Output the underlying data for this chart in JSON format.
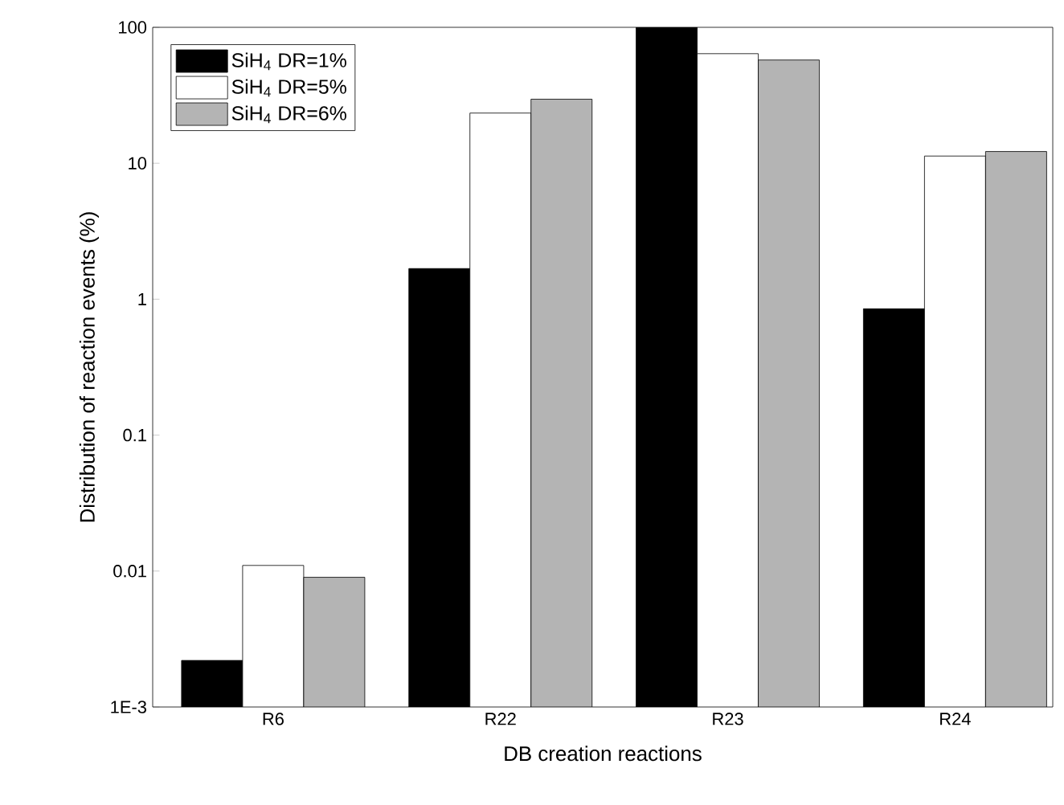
{
  "chart_data": {
    "type": "bar",
    "xlabel": "DB creation reactions",
    "ylabel": "Distribution of reaction events  (%)",
    "categories": [
      "R6",
      "R22",
      "R23",
      "R24"
    ],
    "series": [
      {
        "name": "SiH$_{4}$ DR=1%",
        "color": "#000000",
        "values": [
          0.0022,
          1.68,
          100,
          0.85
        ]
      },
      {
        "name": "SiH$_{4}$ DR=5%",
        "color": "#ffffff",
        "values": [
          0.011,
          23.4,
          64,
          11.3
        ]
      },
      {
        "name": "SiH$_{4}$ DR=6%",
        "color": "#b4b4b4",
        "values": [
          0.009,
          29.6,
          57.5,
          12.2
        ]
      }
    ],
    "log": "y",
    "ylim": [
      0.001,
      100
    ],
    "yticks": [
      {
        "value": 0.001,
        "label": "1E-3"
      },
      0.01,
      0.1,
      1,
      10,
      100
    ],
    "legend": "top left",
    "grid": false
  }
}
